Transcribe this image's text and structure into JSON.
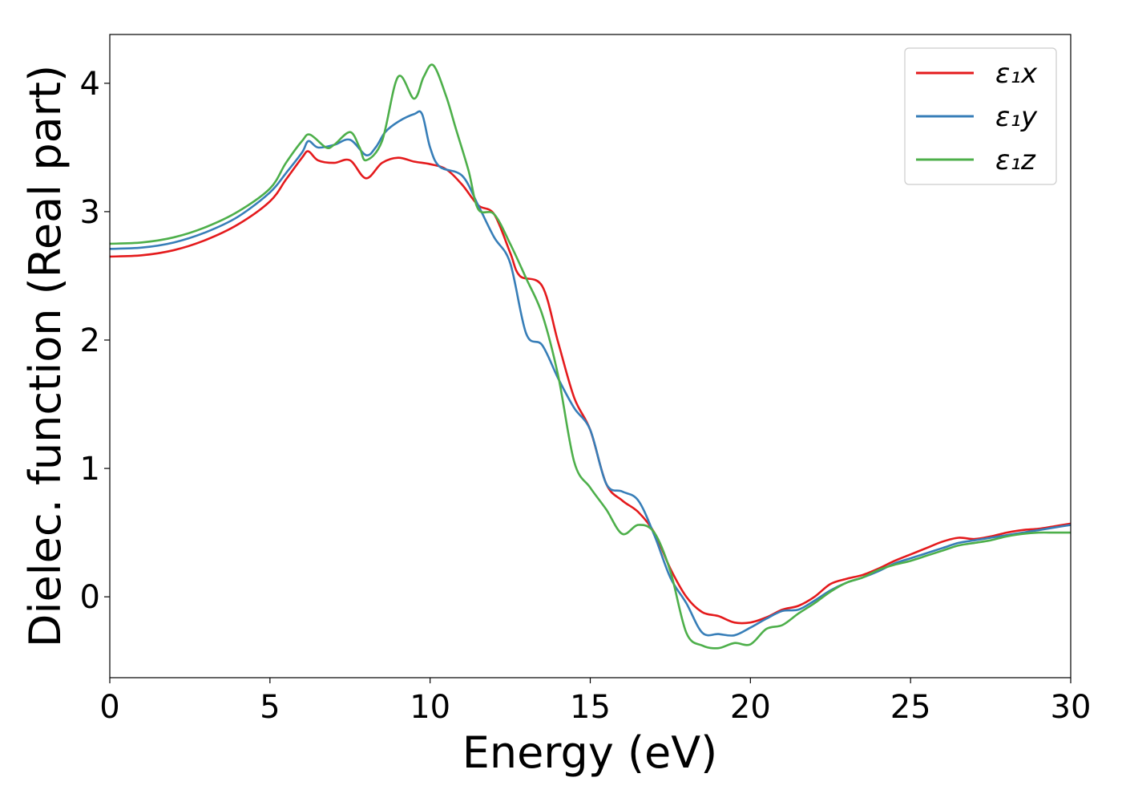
{
  "chart_data": {
    "type": "line",
    "title": "",
    "xlabel": "Energy (eV)",
    "ylabel": "Dielec. function (Real part)",
    "xlim": [
      0,
      30
    ],
    "ylim": [
      -0.63,
      4.38
    ],
    "xticks": [
      0,
      5,
      10,
      15,
      20,
      25,
      30
    ],
    "yticks": [
      0,
      1,
      2,
      3,
      4
    ],
    "grid": false,
    "legend_position": "top-right",
    "series": [
      {
        "name": "ε₁x",
        "color": "#e41a1c",
        "points": [
          [
            0,
            2.65
          ],
          [
            1,
            2.66
          ],
          [
            2,
            2.7
          ],
          [
            3,
            2.78
          ],
          [
            4,
            2.9
          ],
          [
            5,
            3.08
          ],
          [
            5.5,
            3.25
          ],
          [
            6,
            3.42
          ],
          [
            6.2,
            3.47
          ],
          [
            6.5,
            3.4
          ],
          [
            7,
            3.38
          ],
          [
            7.5,
            3.4
          ],
          [
            8,
            3.26
          ],
          [
            8.5,
            3.38
          ],
          [
            9,
            3.42
          ],
          [
            9.5,
            3.39
          ],
          [
            10,
            3.37
          ],
          [
            10.5,
            3.33
          ],
          [
            11,
            3.21
          ],
          [
            11.5,
            3.05
          ],
          [
            12,
            2.98
          ],
          [
            12.5,
            2.68
          ],
          [
            12.8,
            2.5
          ],
          [
            13.5,
            2.42
          ],
          [
            14,
            1.98
          ],
          [
            14.5,
            1.55
          ],
          [
            15,
            1.3
          ],
          [
            15.5,
            0.88
          ],
          [
            16,
            0.75
          ],
          [
            16.5,
            0.66
          ],
          [
            17,
            0.5
          ],
          [
            17.5,
            0.22
          ],
          [
            18,
            0.0
          ],
          [
            18.5,
            -0.12
          ],
          [
            19,
            -0.15
          ],
          [
            19.5,
            -0.2
          ],
          [
            20,
            -0.2
          ],
          [
            20.5,
            -0.16
          ],
          [
            21,
            -0.1
          ],
          [
            21.5,
            -0.07
          ],
          [
            22,
            0.0
          ],
          [
            22.5,
            0.1
          ],
          [
            23,
            0.14
          ],
          [
            23.5,
            0.17
          ],
          [
            24,
            0.22
          ],
          [
            24.5,
            0.28
          ],
          [
            25,
            0.33
          ],
          [
            25.5,
            0.38
          ],
          [
            26,
            0.43
          ],
          [
            26.5,
            0.46
          ],
          [
            27,
            0.45
          ],
          [
            27.5,
            0.47
          ],
          [
            28,
            0.5
          ],
          [
            28.5,
            0.52
          ],
          [
            29,
            0.53
          ],
          [
            29.5,
            0.55
          ],
          [
            30,
            0.57
          ]
        ]
      },
      {
        "name": "ε₁y",
        "color": "#377eb8",
        "points": [
          [
            0,
            2.71
          ],
          [
            1,
            2.72
          ],
          [
            2,
            2.76
          ],
          [
            3,
            2.84
          ],
          [
            4,
            2.96
          ],
          [
            5,
            3.15
          ],
          [
            5.5,
            3.3
          ],
          [
            6,
            3.46
          ],
          [
            6.2,
            3.55
          ],
          [
            6.5,
            3.5
          ],
          [
            7,
            3.52
          ],
          [
            7.5,
            3.56
          ],
          [
            8,
            3.44
          ],
          [
            8.3,
            3.5
          ],
          [
            8.6,
            3.62
          ],
          [
            9,
            3.7
          ],
          [
            9.5,
            3.76
          ],
          [
            9.75,
            3.76
          ],
          [
            10,
            3.5
          ],
          [
            10.3,
            3.35
          ],
          [
            11,
            3.28
          ],
          [
            11.5,
            3.05
          ],
          [
            12,
            2.8
          ],
          [
            12.5,
            2.6
          ],
          [
            13,
            2.05
          ],
          [
            13.5,
            1.96
          ],
          [
            14,
            1.7
          ],
          [
            14.5,
            1.47
          ],
          [
            15,
            1.3
          ],
          [
            15.5,
            0.88
          ],
          [
            16,
            0.82
          ],
          [
            16.5,
            0.75
          ],
          [
            17,
            0.48
          ],
          [
            17.5,
            0.15
          ],
          [
            18,
            -0.05
          ],
          [
            18.5,
            -0.28
          ],
          [
            19,
            -0.29
          ],
          [
            19.5,
            -0.3
          ],
          [
            20,
            -0.24
          ],
          [
            20.5,
            -0.17
          ],
          [
            21,
            -0.11
          ],
          [
            21.5,
            -0.1
          ],
          [
            22,
            -0.03
          ],
          [
            22.5,
            0.05
          ],
          [
            23,
            0.11
          ],
          [
            23.5,
            0.15
          ],
          [
            24,
            0.2
          ],
          [
            24.5,
            0.26
          ],
          [
            25,
            0.3
          ],
          [
            25.5,
            0.34
          ],
          [
            26,
            0.38
          ],
          [
            26.5,
            0.42
          ],
          [
            27,
            0.44
          ],
          [
            27.5,
            0.46
          ],
          [
            28,
            0.48
          ],
          [
            28.5,
            0.5
          ],
          [
            29,
            0.52
          ],
          [
            29.5,
            0.54
          ],
          [
            30,
            0.56
          ]
        ]
      },
      {
        "name": "ε₁z",
        "color": "#4daf4a",
        "points": [
          [
            0,
            2.75
          ],
          [
            1,
            2.76
          ],
          [
            2,
            2.8
          ],
          [
            3,
            2.88
          ],
          [
            4,
            3.0
          ],
          [
            5,
            3.18
          ],
          [
            5.5,
            3.38
          ],
          [
            6,
            3.55
          ],
          [
            6.25,
            3.6
          ],
          [
            6.75,
            3.5
          ],
          [
            7,
            3.52
          ],
          [
            7.5,
            3.62
          ],
          [
            7.8,
            3.5
          ],
          [
            8,
            3.4
          ],
          [
            8.5,
            3.55
          ],
          [
            9,
            4.05
          ],
          [
            9.5,
            3.88
          ],
          [
            9.8,
            4.05
          ],
          [
            10.1,
            4.14
          ],
          [
            10.5,
            3.9
          ],
          [
            10.8,
            3.65
          ],
          [
            11.2,
            3.32
          ],
          [
            11.5,
            3.02
          ],
          [
            12,
            2.98
          ],
          [
            12.5,
            2.75
          ],
          [
            13,
            2.48
          ],
          [
            13.5,
            2.2
          ],
          [
            14,
            1.72
          ],
          [
            14.5,
            1.05
          ],
          [
            15,
            0.85
          ],
          [
            15.5,
            0.68
          ],
          [
            16,
            0.49
          ],
          [
            16.5,
            0.56
          ],
          [
            17,
            0.5
          ],
          [
            17.5,
            0.2
          ],
          [
            18,
            -0.28
          ],
          [
            18.5,
            -0.38
          ],
          [
            19,
            -0.4
          ],
          [
            19.5,
            -0.36
          ],
          [
            20,
            -0.37
          ],
          [
            20.5,
            -0.25
          ],
          [
            21,
            -0.22
          ],
          [
            21.5,
            -0.13
          ],
          [
            22,
            -0.05
          ],
          [
            22.5,
            0.04
          ],
          [
            23,
            0.11
          ],
          [
            23.5,
            0.15
          ],
          [
            24,
            0.21
          ],
          [
            24.5,
            0.25
          ],
          [
            25,
            0.28
          ],
          [
            25.5,
            0.32
          ],
          [
            26,
            0.36
          ],
          [
            26.5,
            0.4
          ],
          [
            27,
            0.42
          ],
          [
            27.5,
            0.44
          ],
          [
            28,
            0.47
          ],
          [
            28.5,
            0.49
          ],
          [
            29,
            0.5
          ],
          [
            29.5,
            0.5
          ],
          [
            30,
            0.5
          ]
        ]
      }
    ]
  }
}
